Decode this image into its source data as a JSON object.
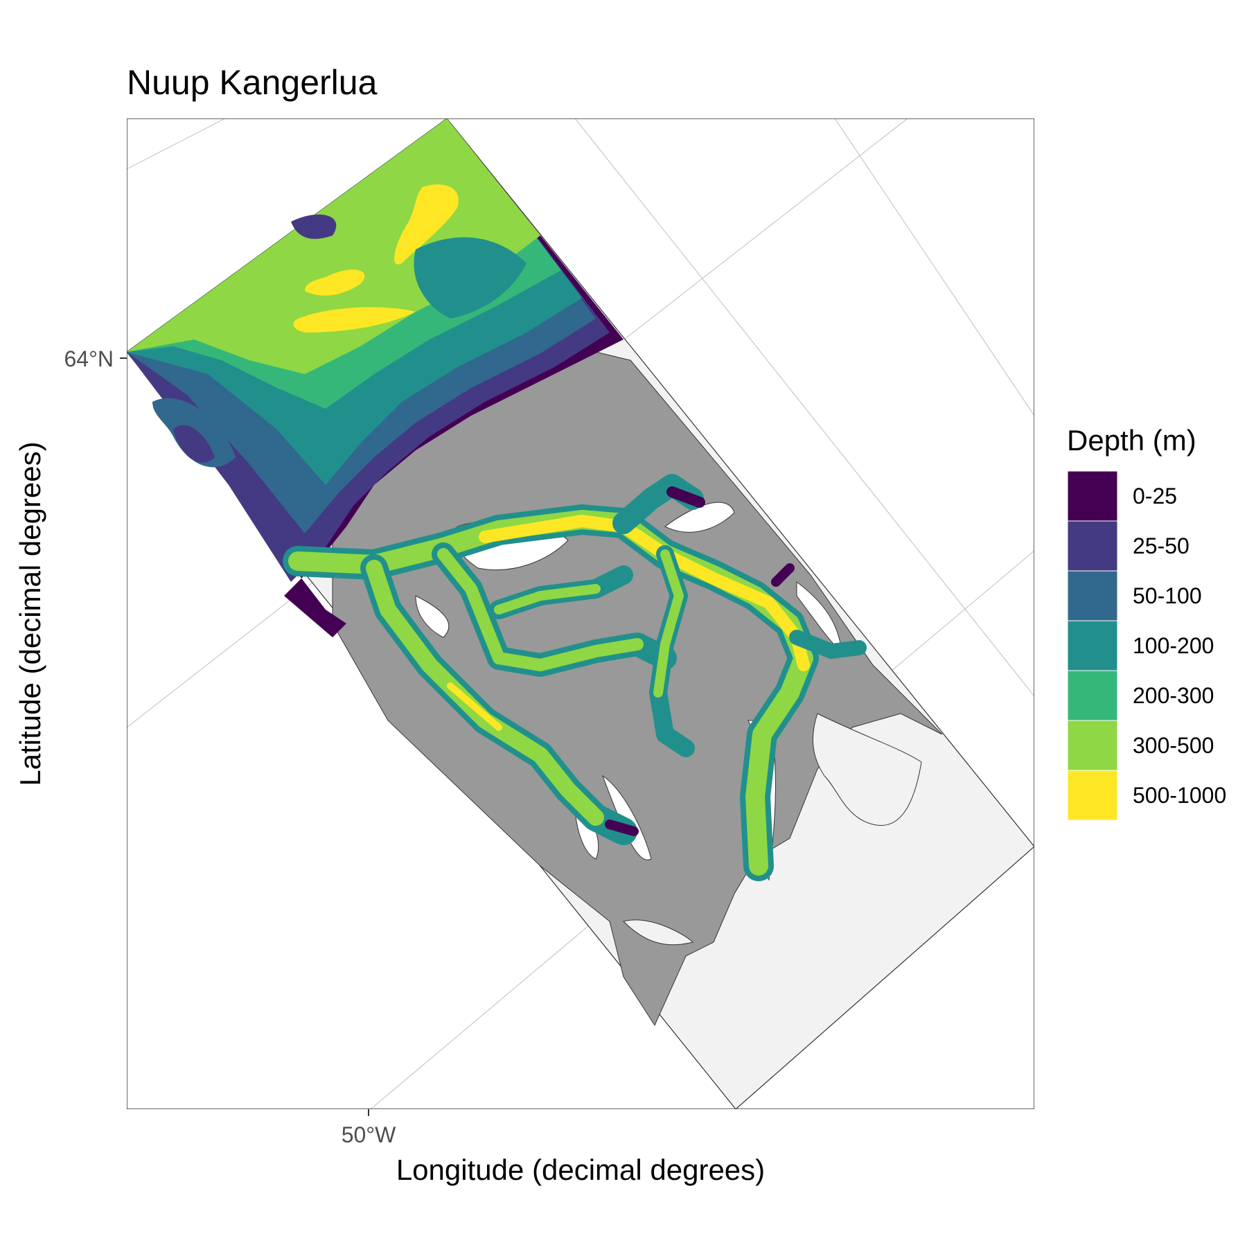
{
  "title": "Nuup Kangerlua",
  "axes": {
    "xlabel": "Longitude (decimal degrees)",
    "ylabel": "Latitude (decimal degrees)",
    "x_tick": "50°W",
    "y_tick": "64°N"
  },
  "legend": {
    "title": "Depth (m)",
    "position": "right",
    "classes": [
      {
        "label": "0-25",
        "color": "#440154"
      },
      {
        "label": "25-50",
        "color": "#443A83"
      },
      {
        "label": "50-100",
        "color": "#31688E"
      },
      {
        "label": "100-200",
        "color": "#21908C"
      },
      {
        "label": "200-300",
        "color": "#35B779"
      },
      {
        "label": "300-500",
        "color": "#8FD744"
      },
      {
        "label": "500-1000",
        "color": "#FDE725"
      }
    ]
  },
  "colors": {
    "land": "#999999",
    "outside_area": "#f2f2f2",
    "graticule": "#c8c8c8",
    "panel_border": "#333333",
    "water_unsurveyed": "#ffffff"
  }
}
